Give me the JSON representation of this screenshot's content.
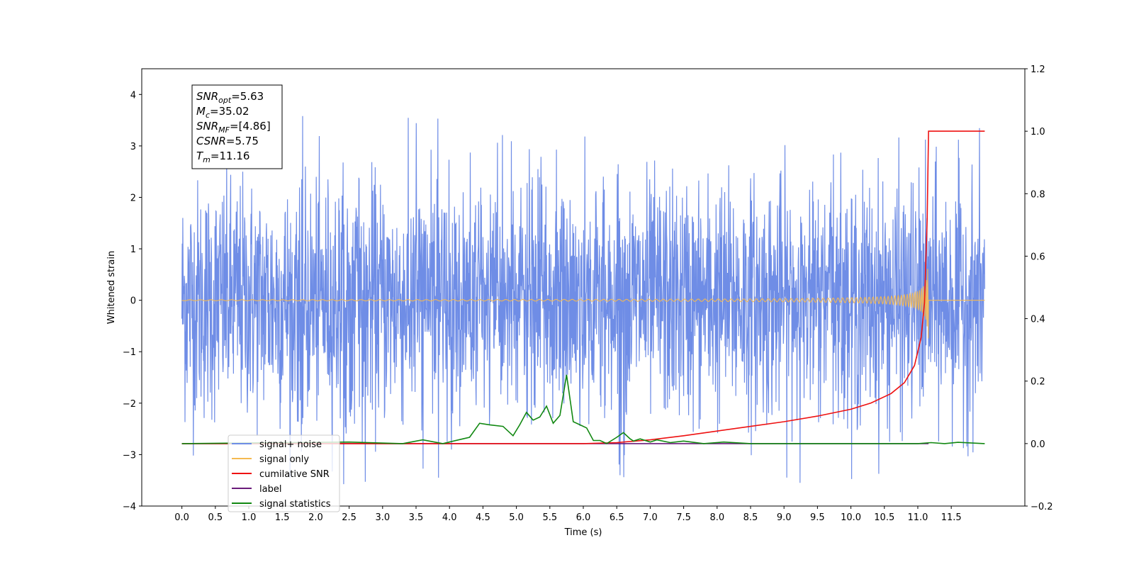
{
  "chart_data": {
    "type": "line",
    "xlabel": "Time (s)",
    "ylabel": "Whitened strain",
    "ylabel_right": "",
    "xlim": [
      -0.6,
      12.6
    ],
    "ylim_left": [
      -4,
      4.5
    ],
    "ylim_right": [
      -0.2,
      1.2
    ],
    "x_ticks": [
      0.0,
      0.5,
      1.0,
      1.5,
      2.0,
      2.5,
      3.0,
      3.5,
      4.0,
      4.5,
      5.0,
      5.5,
      6.0,
      6.5,
      7.0,
      7.5,
      8.0,
      8.5,
      9.0,
      9.5,
      10.0,
      10.5,
      11.0,
      11.5
    ],
    "x_tick_labels": [
      "0.0",
      "0.5",
      "1.0",
      "1.5",
      "2.0",
      "2.5",
      "3.0",
      "3.5",
      "4.0",
      "4.5",
      "5.0",
      "5.5",
      "6.0",
      "6.5",
      "7.0",
      "7.5",
      "8.0",
      "8.5",
      "9.0",
      "9.5",
      "10.0",
      "10.5",
      "11.0",
      "11.5"
    ],
    "y_left_ticks": [
      -4,
      -3,
      -2,
      -1,
      0,
      1,
      2,
      3,
      4
    ],
    "y_left_tick_labels": [
      "−4",
      "−3",
      "−2",
      "−1",
      "0",
      "1",
      "2",
      "3",
      "4"
    ],
    "y_right_ticks": [
      -0.2,
      0.0,
      0.2,
      0.4,
      0.6,
      0.8,
      1.0,
      1.2
    ],
    "y_right_tick_labels": [
      "−0.2",
      "0.0",
      "0.2",
      "0.4",
      "0.6",
      "0.8",
      "1.0",
      "1.2"
    ],
    "grid": false,
    "legend_position": "lower-left",
    "series": [
      {
        "name": "signal+ noise",
        "axis": "left",
        "color": "#6f8de6",
        "x_range": [
          0.0,
          12.0
        ],
        "amplitude_sd": 1.0,
        "y_extremes": [
          -3.6,
          3.6
        ],
        "note_values": "dense noisy time series, approx. gaussian with std ~1"
      },
      {
        "name": "signal only",
        "axis": "left",
        "color": "#f5b951",
        "x_range": [
          0.0,
          12.0
        ],
        "chirp_merger_time": 11.16,
        "chirp_peak_amplitude": 1.2
      },
      {
        "name": "cumilative SNR",
        "axis": "right",
        "color": "#ee1111",
        "x": [
          0.0,
          6.0,
          6.5,
          7.0,
          7.5,
          8.0,
          8.5,
          9.0,
          9.5,
          10.0,
          10.3,
          10.6,
          10.8,
          10.95,
          11.05,
          11.1,
          11.14,
          11.16,
          11.2,
          11.6,
          12.0
        ],
        "values": [
          0.0,
          0.0,
          0.003,
          0.012,
          0.025,
          0.04,
          0.055,
          0.07,
          0.088,
          0.11,
          0.13,
          0.16,
          0.195,
          0.25,
          0.34,
          0.45,
          0.72,
          1.0,
          1.0,
          1.0,
          1.0
        ]
      },
      {
        "name": "label",
        "axis": "right",
        "color": "#6a1b7a",
        "x": [
          0.0,
          11.16
        ],
        "values": [
          0.0,
          0.0
        ]
      },
      {
        "name": "signal statistics",
        "axis": "right",
        "color": "#118811",
        "x": [
          0.0,
          2.5,
          3.3,
          3.6,
          3.9,
          4.2,
          4.3,
          4.45,
          4.6,
          4.8,
          4.95,
          5.05,
          5.15,
          5.25,
          5.35,
          5.45,
          5.55,
          5.65,
          5.75,
          5.85,
          5.95,
          6.05,
          6.15,
          6.25,
          6.35,
          6.5,
          6.6,
          6.7,
          6.75,
          6.85,
          7.0,
          7.1,
          7.3,
          7.5,
          7.8,
          8.1,
          8.5,
          9.0,
          10.0,
          11.0,
          11.2,
          11.4,
          11.6,
          12.0
        ],
        "values": [
          0.0,
          0.005,
          0.0,
          0.012,
          0.0,
          0.015,
          0.02,
          0.065,
          0.06,
          0.055,
          0.025,
          0.06,
          0.1,
          0.075,
          0.085,
          0.12,
          0.065,
          0.09,
          0.22,
          0.07,
          0.06,
          0.05,
          0.01,
          0.01,
          0.0,
          0.02,
          0.035,
          0.015,
          0.008,
          0.015,
          0.005,
          0.012,
          0.003,
          0.008,
          0.0,
          0.005,
          0.0,
          0.0,
          0.0,
          0.0,
          0.003,
          0.0,
          0.004,
          0.0
        ]
      }
    ],
    "info_box": {
      "lines": [
        {
          "main": "SNR",
          "sub": "opt",
          "value": "=5.63"
        },
        {
          "main": "M",
          "sub": "c",
          "value": "=35.02"
        },
        {
          "main": "SNR",
          "sub": "MF",
          "value": "=[4.86]"
        },
        {
          "main": "CSNR",
          "sub": "",
          "value": "=5.75"
        },
        {
          "main": "T",
          "sub": "m",
          "value": "=11.16"
        }
      ]
    }
  }
}
